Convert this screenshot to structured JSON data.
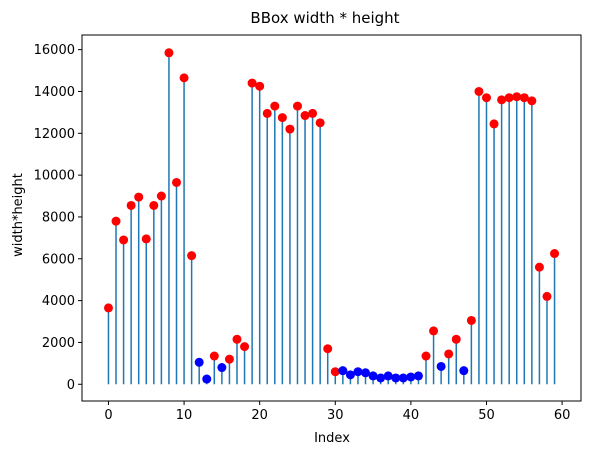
{
  "chart_data": {
    "type": "stem",
    "title": "BBox width * height",
    "xlabel": "Index",
    "ylabel": "width*height",
    "xlim": [
      -3.5,
      62.5
    ],
    "ylim": [
      -800,
      16700
    ],
    "xticks": [
      0,
      10,
      20,
      30,
      40,
      50,
      60
    ],
    "yticks": [
      0,
      2000,
      4000,
      6000,
      8000,
      10000,
      12000,
      14000,
      16000
    ],
    "stem_color": "#1f77b4",
    "high_color": "#ff0000",
    "low_color": "#0000ff",
    "points": [
      {
        "x": 0,
        "y": 3650,
        "group": "high"
      },
      {
        "x": 1,
        "y": 7800,
        "group": "high"
      },
      {
        "x": 2,
        "y": 6900,
        "group": "high"
      },
      {
        "x": 3,
        "y": 8550,
        "group": "high"
      },
      {
        "x": 4,
        "y": 8950,
        "group": "high"
      },
      {
        "x": 5,
        "y": 6950,
        "group": "high"
      },
      {
        "x": 6,
        "y": 8550,
        "group": "high"
      },
      {
        "x": 7,
        "y": 9000,
        "group": "high"
      },
      {
        "x": 8,
        "y": 15850,
        "group": "high"
      },
      {
        "x": 9,
        "y": 9650,
        "group": "high"
      },
      {
        "x": 10,
        "y": 14650,
        "group": "high"
      },
      {
        "x": 11,
        "y": 6150,
        "group": "high"
      },
      {
        "x": 12,
        "y": 1050,
        "group": "low"
      },
      {
        "x": 13,
        "y": 250,
        "group": "low"
      },
      {
        "x": 14,
        "y": 1350,
        "group": "high"
      },
      {
        "x": 15,
        "y": 800,
        "group": "low"
      },
      {
        "x": 16,
        "y": 1200,
        "group": "high"
      },
      {
        "x": 17,
        "y": 2150,
        "group": "high"
      },
      {
        "x": 18,
        "y": 1800,
        "group": "high"
      },
      {
        "x": 19,
        "y": 14400,
        "group": "high"
      },
      {
        "x": 20,
        "y": 14250,
        "group": "high"
      },
      {
        "x": 21,
        "y": 12950,
        "group": "high"
      },
      {
        "x": 22,
        "y": 13300,
        "group": "high"
      },
      {
        "x": 23,
        "y": 12750,
        "group": "high"
      },
      {
        "x": 24,
        "y": 12200,
        "group": "high"
      },
      {
        "x": 25,
        "y": 13300,
        "group": "high"
      },
      {
        "x": 26,
        "y": 12850,
        "group": "high"
      },
      {
        "x": 27,
        "y": 12950,
        "group": "high"
      },
      {
        "x": 28,
        "y": 12500,
        "group": "high"
      },
      {
        "x": 29,
        "y": 1700,
        "group": "high"
      },
      {
        "x": 30,
        "y": 600,
        "group": "high"
      },
      {
        "x": 31,
        "y": 650,
        "group": "low"
      },
      {
        "x": 32,
        "y": 450,
        "group": "low"
      },
      {
        "x": 33,
        "y": 600,
        "group": "low"
      },
      {
        "x": 34,
        "y": 550,
        "group": "low"
      },
      {
        "x": 35,
        "y": 400,
        "group": "low"
      },
      {
        "x": 36,
        "y": 300,
        "group": "low"
      },
      {
        "x": 37,
        "y": 400,
        "group": "low"
      },
      {
        "x": 38,
        "y": 300,
        "group": "low"
      },
      {
        "x": 39,
        "y": 300,
        "group": "low"
      },
      {
        "x": 40,
        "y": 350,
        "group": "low"
      },
      {
        "x": 41,
        "y": 400,
        "group": "low"
      },
      {
        "x": 42,
        "y": 1350,
        "group": "high"
      },
      {
        "x": 43,
        "y": 2550,
        "group": "high"
      },
      {
        "x": 44,
        "y": 850,
        "group": "low"
      },
      {
        "x": 45,
        "y": 1450,
        "group": "high"
      },
      {
        "x": 46,
        "y": 2150,
        "group": "high"
      },
      {
        "x": 47,
        "y": 650,
        "group": "low"
      },
      {
        "x": 48,
        "y": 3050,
        "group": "high"
      },
      {
        "x": 49,
        "y": 14000,
        "group": "high"
      },
      {
        "x": 50,
        "y": 13700,
        "group": "high"
      },
      {
        "x": 51,
        "y": 12450,
        "group": "high"
      },
      {
        "x": 52,
        "y": 13600,
        "group": "high"
      },
      {
        "x": 53,
        "y": 13700,
        "group": "high"
      },
      {
        "x": 54,
        "y": 13750,
        "group": "high"
      },
      {
        "x": 55,
        "y": 13700,
        "group": "high"
      },
      {
        "x": 56,
        "y": 13550,
        "group": "high"
      },
      {
        "x": 57,
        "y": 5600,
        "group": "high"
      },
      {
        "x": 58,
        "y": 4200,
        "group": "high"
      },
      {
        "x": 59,
        "y": 6250,
        "group": "high"
      }
    ]
  }
}
